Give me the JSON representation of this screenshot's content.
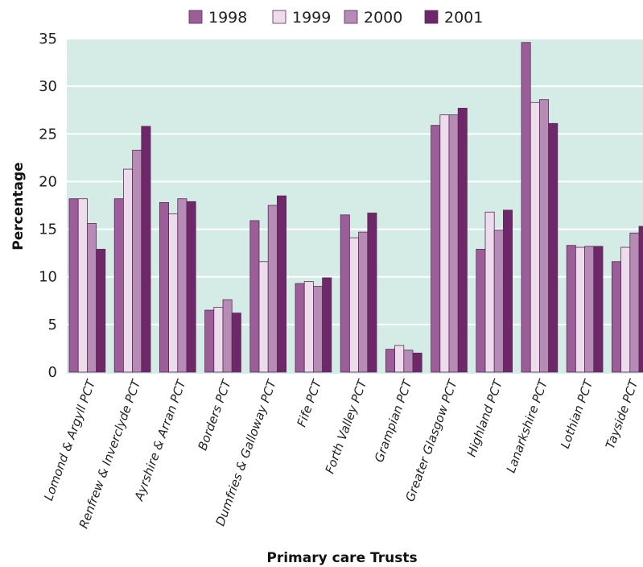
{
  "chart_data": {
    "type": "bar",
    "xlabel": "Primary care Trusts",
    "ylabel": "Percentage",
    "ylim": [
      0,
      35
    ],
    "yticks": [
      0,
      5,
      10,
      15,
      20,
      25,
      30,
      35
    ],
    "grid": true,
    "legend_position": "top",
    "colors": {
      "plot_background": "#d5ebe5",
      "gridline": "#ffffff",
      "bar_outline": "#5a2a55"
    },
    "categories": [
      "Lomond & Argyll PCT",
      "Renfrew & Inverclyde PCT",
      "Ayrshire & Arran PCT",
      "Borders PCT",
      "Dumfries & Galloway PCT",
      "Fife PCT",
      "Forth Valley PCT",
      "Grampian PCT",
      "Greater Glasgow PCT",
      "Highland PCT",
      "Lanarkshire PCT",
      "Lothian PCT",
      "Tayside PCT"
    ],
    "series": [
      {
        "name": "1998",
        "color": "#9b5e99",
        "values": [
          18.2,
          18.2,
          17.8,
          6.5,
          15.9,
          9.3,
          16.5,
          2.4,
          25.9,
          12.9,
          34.6,
          13.3,
          11.6
        ]
      },
      {
        "name": "1999",
        "color": "#ecdcec",
        "values": [
          18.2,
          21.3,
          16.6,
          6.8,
          11.6,
          9.5,
          14.1,
          2.8,
          27.0,
          16.8,
          28.3,
          13.1,
          13.1
        ]
      },
      {
        "name": "2000",
        "color": "#b68cb6",
        "values": [
          15.6,
          23.3,
          18.2,
          7.6,
          17.5,
          9.0,
          14.7,
          2.3,
          27.0,
          14.9,
          28.6,
          13.2,
          14.6
        ]
      },
      {
        "name": "2001",
        "color": "#6e2768",
        "values": [
          12.9,
          25.8,
          17.9,
          6.2,
          18.5,
          9.9,
          16.7,
          2.0,
          27.7,
          17.0,
          26.1,
          13.2,
          15.3
        ]
      }
    ]
  }
}
